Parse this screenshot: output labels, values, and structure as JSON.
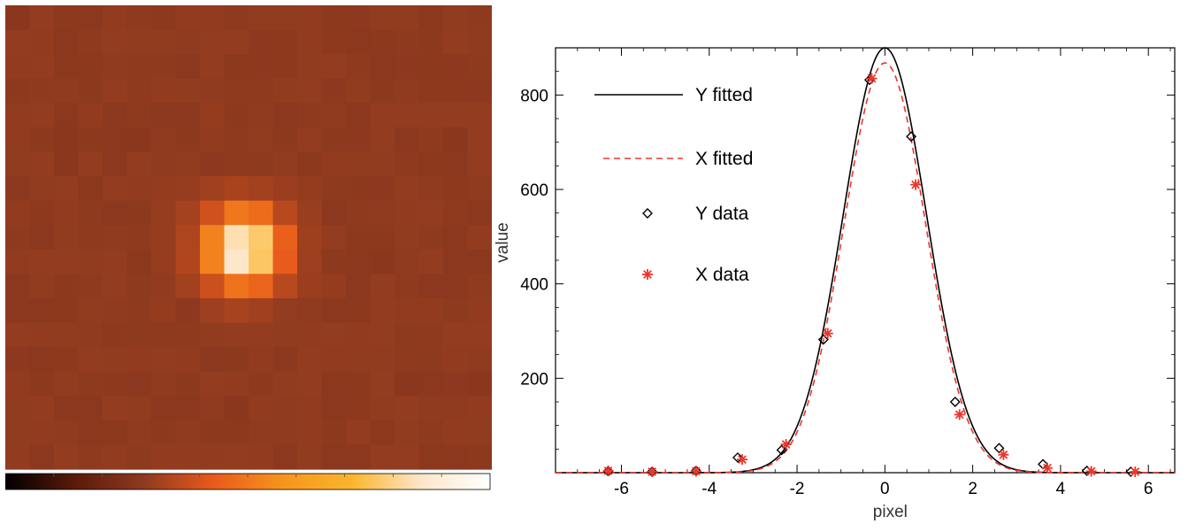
{
  "chart_data": [
    {
      "type": "heatmap",
      "description_colormap": "black-red-orange-yellow-white",
      "colormap": [
        "#000000",
        "#5a1a0a",
        "#8f3a1f",
        "#e85a1c",
        "#f7941d",
        "#fbb52b",
        "#fde6c8",
        "#ffffff"
      ],
      "grid_size": [
        20,
        19
      ],
      "background_color": "#8f3a1f",
      "peak_color": "#ffffff",
      "colorbar_visible": true
    },
    {
      "type": "line",
      "xlabel": "pixel",
      "ylabel": "value",
      "xlim": [
        -7.5,
        6.6
      ],
      "ylim": [
        0,
        900
      ],
      "xticks": [
        -6,
        -4,
        -2,
        0,
        2,
        4,
        6
      ],
      "yticks": [
        200,
        400,
        600,
        800
      ],
      "grid": false,
      "legend_position": "top-left",
      "series": [
        {
          "name": "Y fitted",
          "style": "solid",
          "color": "#000000",
          "amplitude": 900,
          "center": 0,
          "sigma": 0.95
        },
        {
          "name": "X fitted",
          "style": "dashed",
          "color": "#e8372d",
          "amplitude": 868,
          "center": 0,
          "sigma": 0.93
        },
        {
          "name": "Y data",
          "marker": "diamond",
          "color": "#000000",
          "x": [
            -6.3,
            -5.3,
            -4.3,
            -3.35,
            -2.35,
            -1.4,
            -0.35,
            0.6,
            1.6,
            2.6,
            3.6,
            4.6,
            5.6
          ],
          "y": [
            3,
            2,
            4,
            32,
            48,
            282,
            832,
            712,
            150,
            52,
            18,
            4,
            2
          ]
        },
        {
          "name": "X data",
          "marker": "asterisk",
          "color": "#e8372d",
          "x": [
            -6.3,
            -5.3,
            -4.3,
            -3.25,
            -2.25,
            -1.3,
            -0.3,
            0.7,
            1.7,
            2.7,
            3.7,
            4.7,
            5.7
          ],
          "y": [
            4,
            2,
            3,
            28,
            60,
            295,
            835,
            610,
            123,
            38,
            10,
            3,
            2
          ]
        }
      ]
    }
  ]
}
